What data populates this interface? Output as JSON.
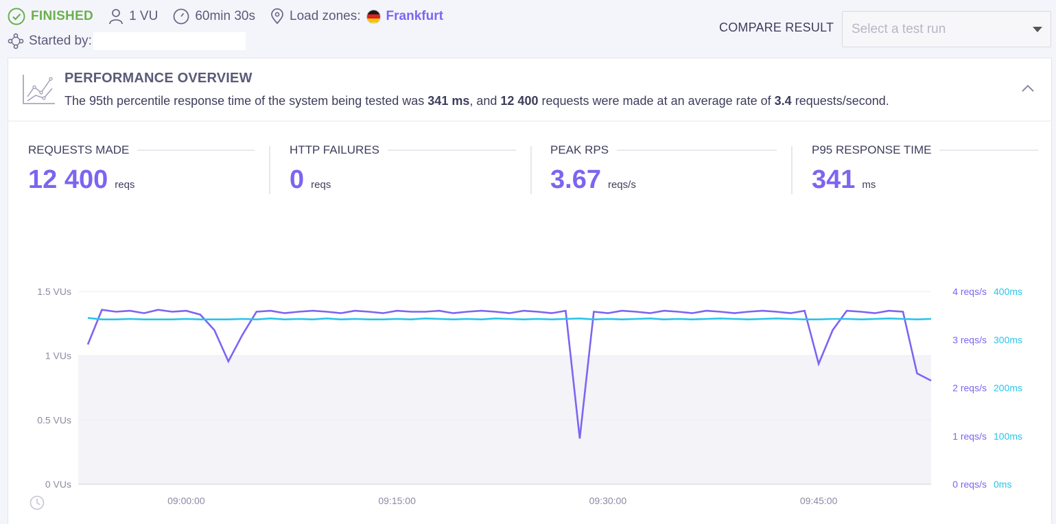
{
  "header": {
    "status": "FINISHED",
    "vus": "1 VU",
    "duration": "60min 30s",
    "load_zones_label": "Load zones:",
    "load_zone": "Frankfurt",
    "started_by_label": "Started by:",
    "compare_label": "COMPARE RESULT",
    "select_placeholder": "Select a test run",
    "colors": {
      "finished": "#6ab04c",
      "accent": "#7d64f1"
    }
  },
  "overview": {
    "title": "PERFORMANCE OVERVIEW",
    "desc_1": "The 95th percentile response time of the system being tested was ",
    "p95": "341 ms",
    "desc_2": ", and ",
    "requests": "12 400",
    "desc_3": " requests were made at an average rate of ",
    "rate": "3.4",
    "desc_4": " requests/second."
  },
  "stats": [
    {
      "label": "REQUESTS MADE",
      "value": "12 400",
      "unit": "reqs"
    },
    {
      "label": "HTTP FAILURES",
      "value": "0",
      "unit": "reqs"
    },
    {
      "label": "PEAK RPS",
      "value": "3.67",
      "unit": "reqs/s"
    },
    {
      "label": "P95 RESPONSE TIME",
      "value": "341",
      "unit": "ms"
    }
  ],
  "chart_data": {
    "type": "line",
    "x_ticks": [
      "09:00:00",
      "09:15:00",
      "09:30:00",
      "09:45:00"
    ],
    "y_left_ticks": [
      "0 VUs",
      "0.5 VUs",
      "1 VUs",
      "1.5 VUs"
    ],
    "y_right_rps_ticks": [
      "0 reqs/s",
      "1 reqs/s",
      "2 reqs/s",
      "3 reqs/s",
      "4 reqs/s"
    ],
    "y_right_ms_ticks": [
      "0ms",
      "100ms",
      "200ms",
      "300ms",
      "400ms"
    ],
    "ylim_vus": [
      0,
      1.5
    ],
    "ylim_rps": [
      0,
      4
    ],
    "ylim_ms": [
      0,
      400
    ],
    "colors": {
      "rps": "#7d64f1",
      "ms": "#29c4e8",
      "vus": "#f3f3f8"
    },
    "series": [
      {
        "values_vus_const": 1
      },
      {
        "x_min": [
          0,
          1,
          2,
          3,
          4,
          5,
          6,
          7,
          8,
          9,
          10,
          11,
          12,
          13,
          14,
          15,
          16,
          17,
          18,
          19,
          20,
          21,
          22,
          23,
          24,
          25,
          26,
          27,
          28,
          29,
          30,
          31,
          32,
          33,
          34,
          35,
          36,
          37,
          38,
          39,
          40,
          41,
          42,
          43,
          44,
          45,
          46,
          47,
          48,
          49,
          50,
          51,
          52,
          53,
          54,
          55,
          56,
          57,
          58,
          59,
          60
        ],
        "rps": [
          2.9,
          3.62,
          3.58,
          3.6,
          3.55,
          3.62,
          3.58,
          3.6,
          3.52,
          3.2,
          2.55,
          3.1,
          3.58,
          3.6,
          3.55,
          3.58,
          3.6,
          3.58,
          3.55,
          3.6,
          3.58,
          3.55,
          3.6,
          3.58,
          3.58,
          3.6,
          3.55,
          3.58,
          3.6,
          3.58,
          3.55,
          3.6,
          3.58,
          3.55,
          3.6,
          0.95,
          3.58,
          3.55,
          3.6,
          3.58,
          3.55,
          3.6,
          3.58,
          3.55,
          3.6,
          3.58,
          3.55,
          3.58,
          3.6,
          3.58,
          3.55,
          3.6,
          2.5,
          3.2,
          3.6,
          3.58,
          3.55,
          3.6,
          3.58,
          2.3,
          2.15
        ],
        "ms": [
          345,
          342,
          342,
          343,
          342,
          342,
          342,
          343,
          342,
          342,
          342,
          343,
          342,
          344,
          342,
          343,
          342,
          344,
          342,
          343,
          342,
          342,
          343,
          342,
          344,
          343,
          342,
          343,
          342,
          344,
          343,
          342,
          343,
          342,
          343,
          344,
          342,
          343,
          342,
          343,
          344,
          342,
          343,
          342,
          343,
          344,
          343,
          342,
          343,
          344,
          343,
          342,
          342,
          343,
          343,
          342,
          343,
          344,
          343,
          342,
          343
        ]
      }
    ]
  }
}
